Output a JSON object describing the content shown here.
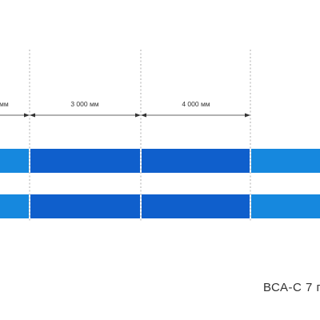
{
  "dimensions": {
    "left_cut_label": "мм",
    "middle_label": "3 000 мм",
    "right_label": "4 000 мм"
  },
  "colors": {
    "light_segment": "#1688de",
    "dark_segment": "#0f5fcc",
    "guide_line": "#9a9a9a",
    "text": "#333333"
  },
  "caption": "ВСА-С 7 г"
}
